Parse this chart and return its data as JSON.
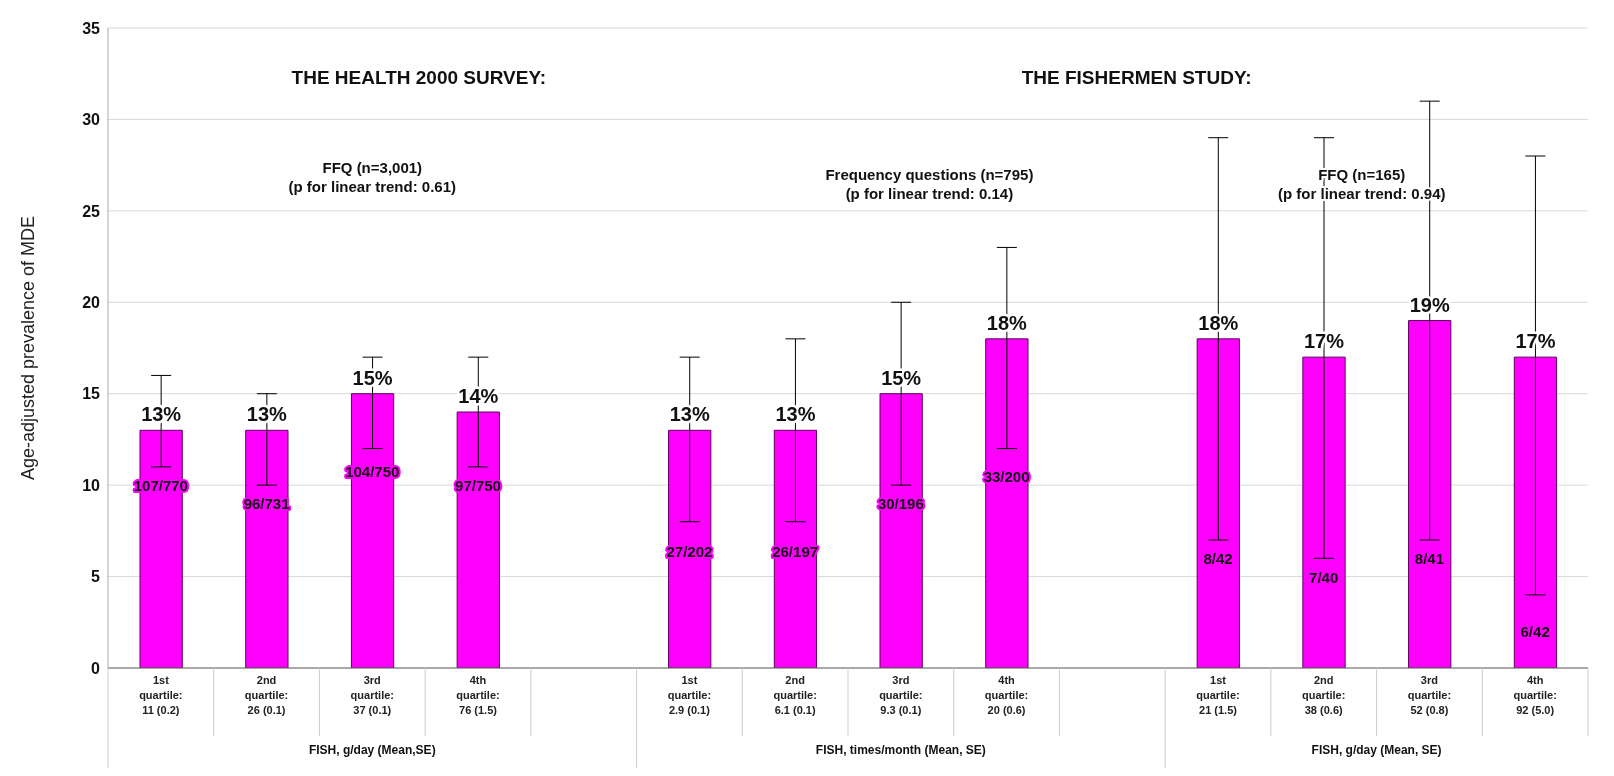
{
  "chart_data": {
    "type": "bar",
    "ylabel": "Age-adjusted prevalence of MDE",
    "categories": [
      "1st\nquartile:\n11 (0.2)",
      "2nd\nquartile:\n26 (0.1)",
      "3rd\nquartile:\n37 (0.1)",
      "4th\nquartile:\n76 (1.5)",
      null,
      "1st\nquartile:\n2.9 (0.1)",
      "2nd\nquartile:\n6.1 (0.1)",
      "3rd\nquartile:\n9.3 (0.1)",
      "4th\nquartile:\n20 (0.6)",
      null,
      "1st\nquartile:\n21 (1.5)",
      "2nd\nquartile:\n38 (0.6)",
      "3rd\nquartile:\n52 (0.8)",
      "4th\nquartile:\n92 (5.0)"
    ],
    "series": [
      {
        "color": "#ff00ff",
        "values": [
          13,
          13,
          15,
          14,
          null,
          13,
          13,
          15,
          18,
          null,
          18,
          17,
          19,
          17
        ],
        "errors": [
          [
            11,
            16
          ],
          [
            10,
            15
          ],
          [
            12,
            17
          ],
          [
            11,
            17
          ],
          null,
          [
            8,
            17
          ],
          [
            8,
            18
          ],
          [
            10,
            20
          ],
          [
            12,
            23
          ],
          null,
          [
            7,
            29
          ],
          [
            6,
            29
          ],
          [
            7,
            31
          ],
          [
            4,
            28
          ]
        ],
        "value_labels": [
          "13%",
          "13%",
          "15%",
          "14%",
          null,
          "13%",
          "13%",
          "15%",
          "18%",
          null,
          "18%",
          "17%",
          "19%",
          "17%"
        ]
      }
    ],
    "ylim": [
      0,
      35
    ],
    "yticks": [
      0,
      5,
      10,
      15,
      20,
      25,
      30,
      35
    ],
    "grid": "y",
    "legend": false,
    "annotations": [
      "THE HEALTH 2000 SURVEY:",
      "THE FISHERMEN STUDY:",
      "FFQ (n=3,001)\n(p for linear trend: 0.61)",
      "Frequency questions  (n=795)\n(p for linear trend: 0.14)",
      "FFQ (n=165)\n(p for linear trend: 0.94)",
      "FISH, g/day (Mean,SE)",
      "FISH, times/month (Mean, SE)",
      "FISH, g/day (Mean, SE)",
      "107/770",
      "96/731",
      "104/750",
      "97/750",
      "27/202",
      "26/197",
      "30/196",
      "33/200",
      "8/42",
      "7/40",
      "8/41",
      "6/42"
    ]
  }
}
